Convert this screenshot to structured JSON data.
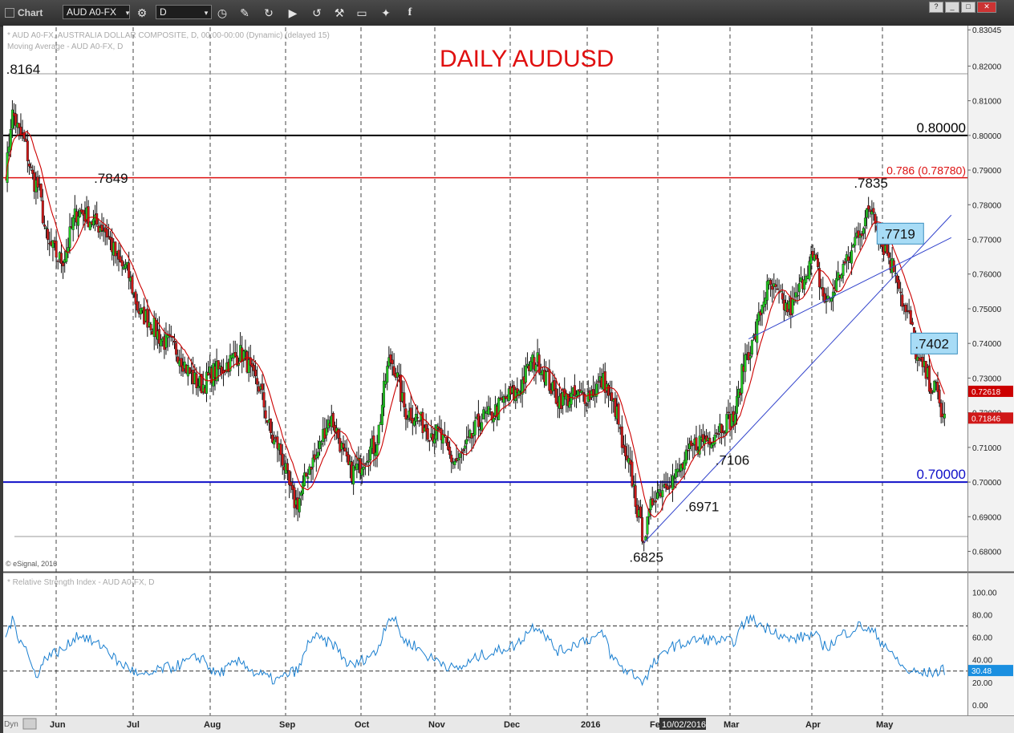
{
  "window": {
    "title": "Chart",
    "symbol": "AUD A0-FX",
    "interval": "D",
    "window_buttons": [
      "?",
      "_",
      "□",
      "✕"
    ]
  },
  "info": {
    "line1": "* AUD A0-FX, AUSTRALIA DOLLAR COMPOSITE, D, 00:00-00:00 (Dynamic) (delayed 15)",
    "line2": "Moving Average - AUD A0-FX, D",
    "copyright": "© eSignal, 2016",
    "rsi_label": "* Relative Strength Index - AUD A0-FX, D",
    "footer_left": "Dyn"
  },
  "colors": {
    "up": "#22cc22",
    "down": "#d01818",
    "ma": "#cc0000",
    "rsi": "#1a7fd0",
    "trend": "#3344cc",
    "level_blue": "#1010c8",
    "level_red": "#dd1111",
    "label_box": "#a8dcf6"
  },
  "chart_data": [
    {
      "type": "candlestick",
      "title": "DAILY AUDUSD",
      "ylim": [
        0.6755,
        0.8305
      ],
      "y_ticks": [
        "0.83045",
        "0.82000",
        "0.81000",
        "0.80000",
        "0.79000",
        "0.78000",
        "0.77000",
        "0.76000",
        "0.75000",
        "0.74000",
        "0.73000",
        "0.72000",
        "0.71000",
        "0.70000",
        "0.69000",
        "0.68000"
      ],
      "x_ticks": [
        "Jun",
        "Jul",
        "Aug",
        "Sep",
        "Oct",
        "Nov",
        "Dec",
        "2016",
        "Feb",
        "Mar",
        "Apr",
        "May"
      ],
      "cursor_date": "10/02/2016",
      "key_points": [
        {
          "label": ".8164",
          "value": 0.8164
        },
        {
          "label": ".7849",
          "value": 0.7849
        },
        {
          "label": ".6825",
          "value": 0.6825
        },
        {
          "label": ".6971",
          "value": 0.6971
        },
        {
          "label": ".7106",
          "value": 0.7106
        },
        {
          "label": ".7835",
          "value": 0.7835
        },
        {
          "label": ".7719",
          "value": 0.7719
        },
        {
          "label": ".7402",
          "value": 0.7402
        }
      ],
      "levels": [
        {
          "label": "0.80000",
          "value": 0.8
        },
        {
          "label": "0.786 (0.78780)",
          "value": 0.7878
        },
        {
          "label": "0.70000",
          "value": 0.7
        }
      ],
      "last_price": "0.71846",
      "ma_last": "0.72618",
      "anchors": [
        [
          0,
          0.79
        ],
        [
          4,
          0.806
        ],
        [
          9,
          0.8
        ],
        [
          18,
          0.786
        ],
        [
          26,
          0.768
        ],
        [
          33,
          0.764
        ],
        [
          43,
          0.778
        ],
        [
          56,
          0.774
        ],
        [
          70,
          0.762
        ],
        [
          81,
          0.748
        ],
        [
          96,
          0.74
        ],
        [
          116,
          0.728
        ],
        [
          124,
          0.732
        ],
        [
          140,
          0.737
        ],
        [
          148,
          0.729
        ],
        [
          160,
          0.711
        ],
        [
          172,
          0.694
        ],
        [
          182,
          0.706
        ],
        [
          192,
          0.718
        ],
        [
          205,
          0.703
        ],
        [
          218,
          0.71
        ],
        [
          228,
          0.735
        ],
        [
          238,
          0.72
        ],
        [
          255,
          0.714
        ],
        [
          266,
          0.706
        ],
        [
          285,
          0.719
        ],
        [
          300,
          0.725
        ],
        [
          314,
          0.735
        ],
        [
          328,
          0.724
        ],
        [
          344,
          0.725
        ],
        [
          354,
          0.729
        ],
        [
          360,
          0.722
        ],
        [
          368,
          0.705
        ],
        [
          378,
          0.685
        ],
        [
          385,
          0.697
        ],
        [
          394,
          0.701
        ],
        [
          412,
          0.712
        ],
        [
          430,
          0.718
        ],
        [
          440,
          0.738
        ],
        [
          452,
          0.756
        ],
        [
          464,
          0.75
        ],
        [
          478,
          0.764
        ],
        [
          486,
          0.752
        ],
        [
          498,
          0.763
        ],
        [
          506,
          0.773
        ],
        [
          513,
          0.779
        ],
        [
          520,
          0.768
        ],
        [
          526,
          0.762
        ],
        [
          534,
          0.748
        ],
        [
          542,
          0.733
        ],
        [
          550,
          0.727
        ],
        [
          556,
          0.718
        ]
      ],
      "rsi": {
        "label": "Relative Strength Index",
        "ylim": [
          -5,
          113
        ],
        "y_ticks": [
          "100.00",
          "80.00",
          "60.00",
          "40.00",
          "20.00",
          "0.00"
        ],
        "levels": [
          70,
          30
        ],
        "last": "30.48",
        "anchors": [
          [
            0,
            62
          ],
          [
            4,
            74
          ],
          [
            9,
            58
          ],
          [
            18,
            28
          ],
          [
            26,
            45
          ],
          [
            33,
            48
          ],
          [
            43,
            62
          ],
          [
            56,
            53
          ],
          [
            70,
            35
          ],
          [
            81,
            25
          ],
          [
            96,
            33
          ],
          [
            116,
            42
          ],
          [
            124,
            28
          ],
          [
            140,
            38
          ],
          [
            148,
            28
          ],
          [
            160,
            22
          ],
          [
            172,
            30
          ],
          [
            182,
            60
          ],
          [
            192,
            55
          ],
          [
            205,
            35
          ],
          [
            218,
            45
          ],
          [
            228,
            78
          ],
          [
            238,
            55
          ],
          [
            255,
            40
          ],
          [
            266,
            32
          ],
          [
            285,
            45
          ],
          [
            300,
            52
          ],
          [
            314,
            70
          ],
          [
            328,
            48
          ],
          [
            344,
            58
          ],
          [
            354,
            62
          ],
          [
            360,
            40
          ],
          [
            368,
            30
          ],
          [
            378,
            22
          ],
          [
            385,
            38
          ],
          [
            394,
            52
          ],
          [
            412,
            58
          ],
          [
            430,
            56
          ],
          [
            440,
            76
          ],
          [
            452,
            68
          ],
          [
            464,
            58
          ],
          [
            478,
            62
          ],
          [
            486,
            52
          ],
          [
            498,
            64
          ],
          [
            506,
            70
          ],
          [
            513,
            65
          ],
          [
            520,
            55
          ],
          [
            526,
            42
          ],
          [
            534,
            30
          ],
          [
            542,
            28
          ],
          [
            550,
            29
          ],
          [
            556,
            31
          ]
        ]
      }
    }
  ]
}
